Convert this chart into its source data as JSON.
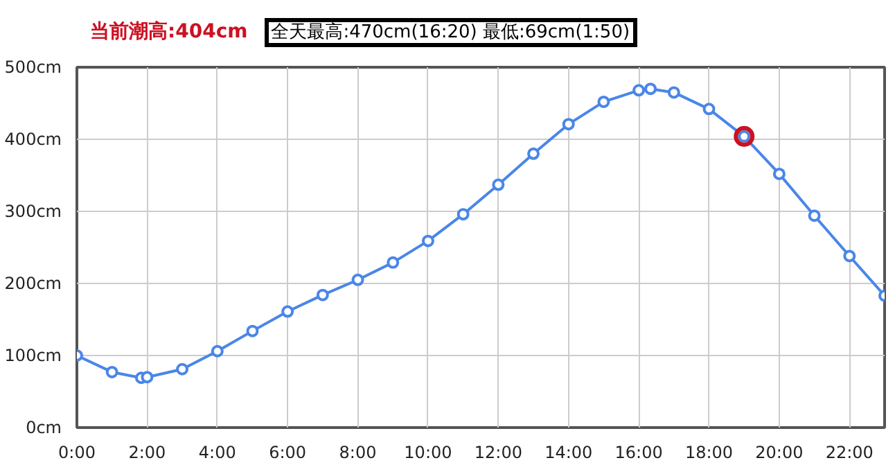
{
  "chart_data": {
    "type": "line",
    "annotations": [
      "当前潮高:404cm",
      "全天最高:470cm(16:20) 最低:69cm(1:50)"
    ],
    "xlim": [
      0,
      23
    ],
    "ylim": [
      0,
      500
    ],
    "xticks": [
      {
        "value": 0,
        "label": "0:00"
      },
      {
        "value": 2,
        "label": "2:00"
      },
      {
        "value": 4,
        "label": "4:00"
      },
      {
        "value": 6,
        "label": "6:00"
      },
      {
        "value": 8,
        "label": "8:00"
      },
      {
        "value": 10,
        "label": "10:00"
      },
      {
        "value": 12,
        "label": "12:00"
      },
      {
        "value": 14,
        "label": "14:00"
      },
      {
        "value": 16,
        "label": "16:00"
      },
      {
        "value": 18,
        "label": "18:00"
      },
      {
        "value": 20,
        "label": "20:00"
      },
      {
        "value": 22,
        "label": "22:00"
      }
    ],
    "yticks": [
      {
        "value": 0,
        "label": "0cm"
      },
      {
        "value": 100,
        "label": "100cm"
      },
      {
        "value": 200,
        "label": "200cm"
      },
      {
        "value": 300,
        "label": "300cm"
      },
      {
        "value": 400,
        "label": "400cm"
      },
      {
        "value": 500,
        "label": "500cm"
      }
    ],
    "grid": true,
    "marker": "circle",
    "line_style": "solid",
    "series": [
      {
        "color": "#4a86e8",
        "x": [
          0,
          1,
          1.8333,
          2,
          3,
          4,
          5,
          6,
          7,
          8,
          9,
          10,
          11,
          12,
          13,
          14,
          15,
          16,
          16.3333,
          17,
          18,
          19,
          20,
          21,
          22,
          23
        ],
        "values": [
          100,
          77,
          69,
          70,
          81,
          106,
          134,
          161,
          184,
          205,
          229,
          259,
          296,
          337,
          380,
          421,
          452,
          468,
          470,
          465,
          442,
          404,
          352,
          294,
          238,
          183
        ]
      },
      {
        "type": "scatter",
        "color": "#cc1122",
        "x": [
          19
        ],
        "values": [
          404
        ]
      }
    ]
  }
}
